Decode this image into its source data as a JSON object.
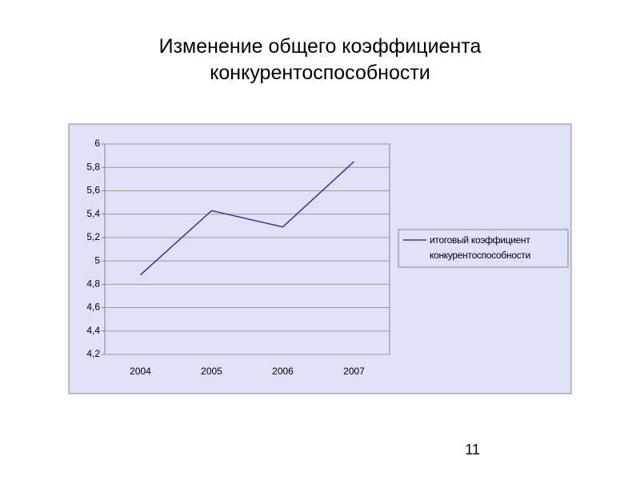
{
  "slide": {
    "title_lines": [
      "Изменение общего коэффициента",
      "конкурентоспособности"
    ],
    "page_number": 11
  },
  "chart_data": {
    "type": "line",
    "categories": [
      "2004",
      "2005",
      "2006",
      "2007"
    ],
    "series": [
      {
        "name": "итоговый коэффициент конкурентоспособности",
        "color": "#333399",
        "values": [
          4.88,
          5.43,
          5.29,
          5.85
        ]
      }
    ],
    "ylim": [
      4.2,
      6
    ],
    "yticks": [
      {
        "value": 4.2,
        "label": "4,2"
      },
      {
        "value": 4.4,
        "label": "4,4"
      },
      {
        "value": 4.6,
        "label": "4,6"
      },
      {
        "value": 4.8,
        "label": "4,8"
      },
      5,
      {
        "value": 5.2,
        "label": "5,2"
      },
      {
        "value": 5.4,
        "label": "5,4"
      },
      {
        "value": 5.6,
        "label": "5,6"
      },
      {
        "value": 5.8,
        "label": "5,8"
      },
      6
    ],
    "grid": true,
    "legend": "right"
  }
}
